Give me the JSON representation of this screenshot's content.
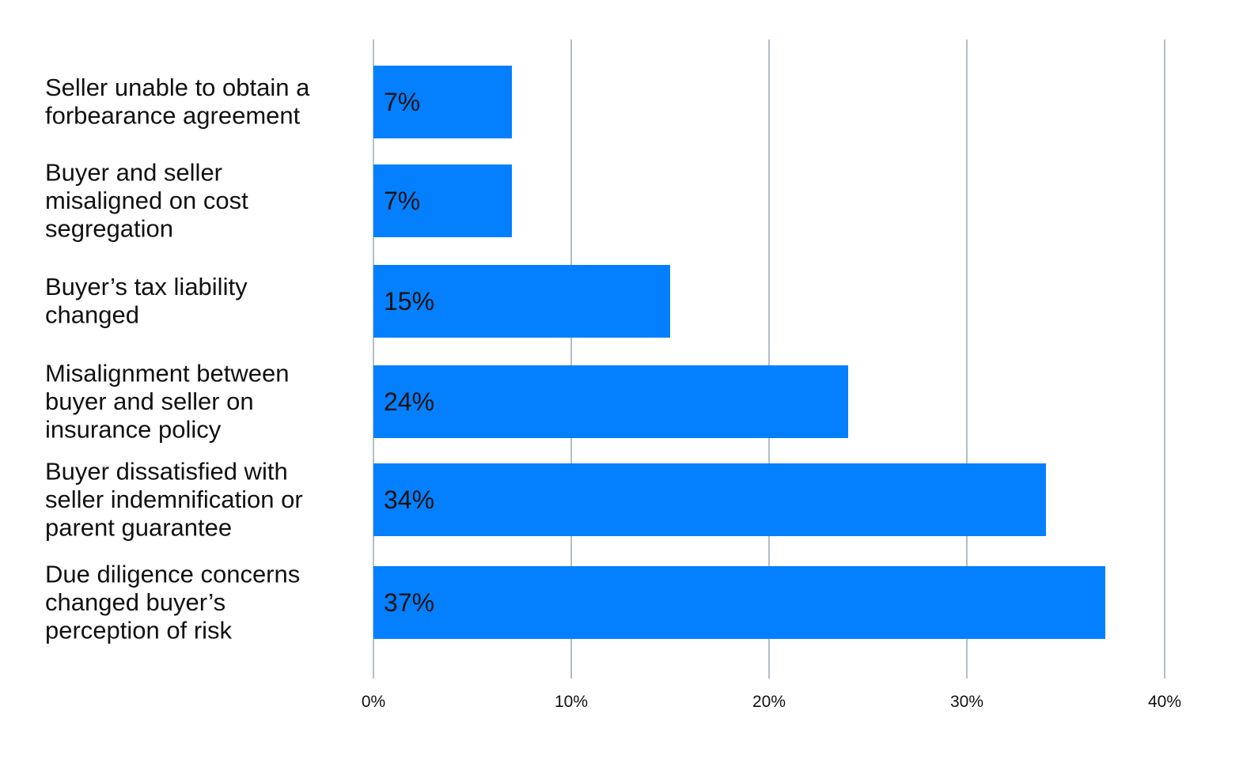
{
  "chart_data": {
    "type": "bar",
    "orientation": "horizontal",
    "categories": [
      [
        "Seller unable to obtain a",
        "forbearance agreement"
      ],
      [
        "Buyer and seller",
        "misaligned on cost",
        "segregation"
      ],
      [
        "Buyer’s tax liability",
        "changed"
      ],
      [
        "Misalignment between",
        "buyer and seller on",
        "insurance policy"
      ],
      [
        "Buyer dissatisfied with",
        "seller indemnification or",
        "parent guarantee"
      ],
      [
        "Due diligence concerns",
        "changed buyer’s",
        "perception of risk"
      ]
    ],
    "values": [
      7,
      7,
      15,
      24,
      34,
      37
    ],
    "value_labels": [
      "7%",
      "7%",
      "15%",
      "24%",
      "34%",
      "37%"
    ],
    "xlim": [
      0,
      40
    ],
    "xticks": [
      0,
      10,
      20,
      30,
      40
    ],
    "xtick_labels": [
      "0%",
      "10%",
      "20%",
      "30%",
      "40%"
    ],
    "grid": "vertical",
    "title": "",
    "xlabel": "",
    "ylabel": "",
    "colors": {
      "bar": "#0480FF",
      "grid": "#9AA8BA",
      "text": "#111111"
    }
  }
}
